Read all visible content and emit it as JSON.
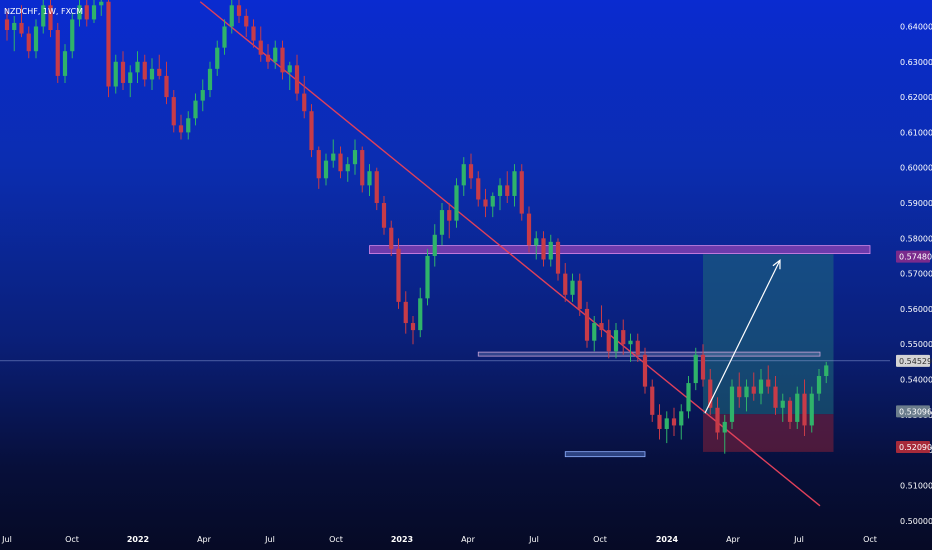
{
  "chart_data": {
    "type": "candlestick",
    "symbol": "NZDCHF, 1W, FXCM",
    "x_ticks": [
      "Jul",
      "Oct",
      "2022",
      "Apr",
      "Jul",
      "Oct",
      "2023",
      "Apr",
      "Jul",
      "Oct",
      "2024",
      "Apr",
      "Jul",
      "Oct"
    ],
    "x_ticks_bold": [
      "2022",
      "2023",
      "2024"
    ],
    "y_ticks": [
      "0.64000",
      "0.63000",
      "0.62000",
      "0.61000",
      "0.60000",
      "0.59000",
      "0.58000",
      "0.57000",
      "0.56000",
      "0.55000",
      "0.54000",
      "0.53000",
      "0.52000",
      "0.51000",
      "0.50000"
    ],
    "y_range": [
      0.4988,
      0.6475
    ],
    "candles": [
      [
        0.642,
        0.645,
        0.636,
        0.639
      ],
      [
        0.639,
        0.643,
        0.633,
        0.641
      ],
      [
        0.641,
        0.646,
        0.637,
        0.638
      ],
      [
        0.638,
        0.64,
        0.631,
        0.633
      ],
      [
        0.633,
        0.642,
        0.631,
        0.64
      ],
      [
        0.64,
        0.648,
        0.638,
        0.646
      ],
      [
        0.646,
        0.648,
        0.637,
        0.639
      ],
      [
        0.639,
        0.641,
        0.624,
        0.626
      ],
      [
        0.626,
        0.635,
        0.624,
        0.633
      ],
      [
        0.633,
        0.644,
        0.631,
        0.642
      ],
      [
        0.642,
        0.648,
        0.64,
        0.646
      ],
      [
        0.646,
        0.648,
        0.64,
        0.642
      ],
      [
        0.642,
        0.648,
        0.641,
        0.646
      ],
      [
        0.646,
        0.648,
        0.643,
        0.647
      ],
      [
        0.647,
        0.648,
        0.62,
        0.623
      ],
      [
        0.623,
        0.632,
        0.621,
        0.63
      ],
      [
        0.63,
        0.633,
        0.622,
        0.624
      ],
      [
        0.624,
        0.629,
        0.62,
        0.627
      ],
      [
        0.627,
        0.633,
        0.624,
        0.63
      ],
      [
        0.63,
        0.632,
        0.623,
        0.625
      ],
      [
        0.625,
        0.631,
        0.622,
        0.628
      ],
      [
        0.628,
        0.632,
        0.625,
        0.626
      ],
      [
        0.626,
        0.63,
        0.618,
        0.62
      ],
      [
        0.62,
        0.622,
        0.61,
        0.612
      ],
      [
        0.612,
        0.615,
        0.608,
        0.61
      ],
      [
        0.61,
        0.616,
        0.608,
        0.614
      ],
      [
        0.614,
        0.621,
        0.612,
        0.619
      ],
      [
        0.619,
        0.625,
        0.616,
        0.622
      ],
      [
        0.622,
        0.63,
        0.62,
        0.628
      ],
      [
        0.628,
        0.636,
        0.626,
        0.634
      ],
      [
        0.634,
        0.642,
        0.632,
        0.64
      ],
      [
        0.64,
        0.648,
        0.638,
        0.646
      ],
      [
        0.646,
        0.648,
        0.641,
        0.643
      ],
      [
        0.643,
        0.645,
        0.637,
        0.64
      ],
      [
        0.64,
        0.642,
        0.634,
        0.636
      ],
      [
        0.636,
        0.64,
        0.63,
        0.632
      ],
      [
        0.632,
        0.635,
        0.628,
        0.63
      ],
      [
        0.63,
        0.636,
        0.628,
        0.634
      ],
      [
        0.634,
        0.636,
        0.625,
        0.627
      ],
      [
        0.627,
        0.63,
        0.622,
        0.629
      ],
      [
        0.629,
        0.632,
        0.619,
        0.621
      ],
      [
        0.621,
        0.626,
        0.614,
        0.616
      ],
      [
        0.616,
        0.618,
        0.603,
        0.605
      ],
      [
        0.605,
        0.606,
        0.594,
        0.597
      ],
      [
        0.597,
        0.604,
        0.595,
        0.602
      ],
      [
        0.602,
        0.608,
        0.6,
        0.604
      ],
      [
        0.604,
        0.606,
        0.597,
        0.599
      ],
      [
        0.599,
        0.603,
        0.596,
        0.601
      ],
      [
        0.601,
        0.608,
        0.598,
        0.605
      ],
      [
        0.605,
        0.606,
        0.593,
        0.595
      ],
      [
        0.595,
        0.601,
        0.592,
        0.599
      ],
      [
        0.599,
        0.6,
        0.588,
        0.59
      ],
      [
        0.59,
        0.592,
        0.581,
        0.583
      ],
      [
        0.583,
        0.585,
        0.575,
        0.577
      ],
      [
        0.577,
        0.58,
        0.56,
        0.562
      ],
      [
        0.562,
        0.565,
        0.553,
        0.556
      ],
      [
        0.556,
        0.558,
        0.55,
        0.554
      ],
      [
        0.554,
        0.566,
        0.552,
        0.563
      ],
      [
        0.563,
        0.577,
        0.561,
        0.575
      ],
      [
        0.575,
        0.584,
        0.572,
        0.581
      ],
      [
        0.581,
        0.59,
        0.578,
        0.588
      ],
      [
        0.588,
        0.59,
        0.58,
        0.585
      ],
      [
        0.585,
        0.597,
        0.583,
        0.595
      ],
      [
        0.595,
        0.603,
        0.592,
        0.601
      ],
      [
        0.601,
        0.604,
        0.594,
        0.597
      ],
      [
        0.597,
        0.599,
        0.589,
        0.591
      ],
      [
        0.591,
        0.594,
        0.586,
        0.589
      ],
      [
        0.589,
        0.593,
        0.586,
        0.592
      ],
      [
        0.592,
        0.597,
        0.588,
        0.595
      ],
      [
        0.595,
        0.599,
        0.59,
        0.592
      ],
      [
        0.592,
        0.601,
        0.589,
        0.599
      ],
      [
        0.599,
        0.601,
        0.585,
        0.587
      ],
      [
        0.587,
        0.589,
        0.576,
        0.578
      ],
      [
        0.578,
        0.582,
        0.574,
        0.58
      ],
      [
        0.58,
        0.582,
        0.572,
        0.574
      ],
      [
        0.574,
        0.581,
        0.572,
        0.579
      ],
      [
        0.579,
        0.58,
        0.568,
        0.57
      ],
      [
        0.57,
        0.573,
        0.562,
        0.564
      ],
      [
        0.564,
        0.57,
        0.562,
        0.568
      ],
      [
        0.568,
        0.57,
        0.558,
        0.56
      ],
      [
        0.56,
        0.562,
        0.549,
        0.551
      ],
      [
        0.551,
        0.558,
        0.548,
        0.556
      ],
      [
        0.556,
        0.561,
        0.552,
        0.554
      ],
      [
        0.554,
        0.557,
        0.546,
        0.548
      ],
      [
        0.548,
        0.556,
        0.546,
        0.554
      ],
      [
        0.554,
        0.557,
        0.547,
        0.55
      ],
      [
        0.55,
        0.553,
        0.545,
        0.551
      ],
      [
        0.551,
        0.553,
        0.545,
        0.547
      ],
      [
        0.547,
        0.549,
        0.536,
        0.538
      ],
      [
        0.538,
        0.54,
        0.528,
        0.53
      ],
      [
        0.53,
        0.533,
        0.523,
        0.526
      ],
      [
        0.526,
        0.531,
        0.522,
        0.529
      ],
      [
        0.529,
        0.532,
        0.524,
        0.527
      ],
      [
        0.527,
        0.533,
        0.523,
        0.531
      ],
      [
        0.531,
        0.541,
        0.529,
        0.539
      ],
      [
        0.539,
        0.549,
        0.537,
        0.547
      ],
      [
        0.547,
        0.55,
        0.538,
        0.54
      ],
      [
        0.54,
        0.543,
        0.53,
        0.532
      ],
      [
        0.532,
        0.535,
        0.523,
        0.525
      ],
      [
        0.525,
        0.53,
        0.519,
        0.528
      ],
      [
        0.528,
        0.54,
        0.526,
        0.538
      ],
      [
        0.538,
        0.542,
        0.532,
        0.535
      ],
      [
        0.535,
        0.54,
        0.531,
        0.538
      ],
      [
        0.538,
        0.542,
        0.534,
        0.536
      ],
      [
        0.536,
        0.543,
        0.533,
        0.54
      ],
      [
        0.54,
        0.544,
        0.536,
        0.538
      ],
      [
        0.538,
        0.541,
        0.53,
        0.532
      ],
      [
        0.532,
        0.536,
        0.528,
        0.534
      ],
      [
        0.534,
        0.535,
        0.526,
        0.528
      ],
      [
        0.528,
        0.538,
        0.526,
        0.536
      ],
      [
        0.536,
        0.54,
        0.524,
        0.527
      ],
      [
        0.527,
        0.538,
        0.525,
        0.536
      ],
      [
        0.536,
        0.543,
        0.534,
        0.541
      ],
      [
        0.541,
        0.545,
        0.539,
        0.544
      ]
    ],
    "annotations": {
      "resistance_zone": [
        0.5755,
        0.5768
      ],
      "mid_zone": [
        0.5465,
        0.5472
      ],
      "support_zone": [
        0.5182,
        0.519
      ],
      "trendline": {
        "from_index": 17,
        "from_price": 0.647,
        "to_index": 112,
        "to_price": 0.5065
      },
      "target_box": [
        0.5302,
        0.5755
      ],
      "stop_box": [
        0.5195,
        0.5302
      ],
      "projection_arrow": {
        "from_index": 96,
        "from_price": 0.5305,
        "to_index": 106,
        "to_price": 0.5755
      }
    },
    "price_tags": [
      {
        "label": "0.57480",
        "price": 0.5748,
        "bg": "#7a2a8c",
        "fg": "#ffffff"
      },
      {
        "label": "0.54529",
        "price": 0.5453,
        "bg": "#d4d4d4",
        "fg": "#333333"
      },
      {
        "label": "0.53096",
        "price": 0.531,
        "bg": "#6b7d8c",
        "fg": "#ffffff"
      },
      {
        "label": "0.52090",
        "price": 0.5209,
        "bg": "#a72a3a",
        "fg": "#ffffff"
      }
    ],
    "colors": {
      "up": "#2fb36a",
      "down": "#c73b48",
      "trendline": "#e0405a",
      "resistance": "#a347b8",
      "target": "#1f6b7a",
      "stop": "#7a2038",
      "support": "#5b7fd1"
    }
  }
}
